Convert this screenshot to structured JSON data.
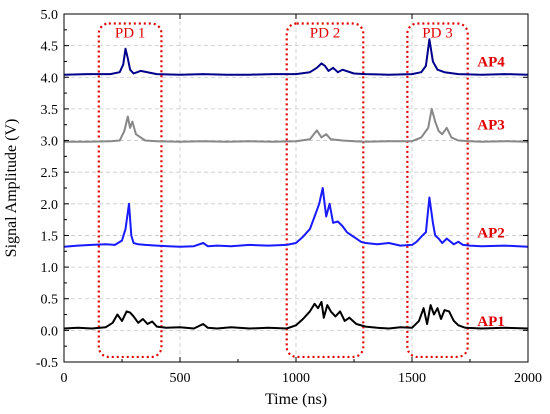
{
  "chart_data": {
    "type": "line",
    "xlabel": "Time (ns)",
    "ylabel": "Signal Amplitude (V)",
    "xlim": [
      0,
      2000
    ],
    "ylim": [
      -0.5,
      5.0
    ],
    "xticks": [
      "0",
      "500",
      "1000",
      "1500",
      "2000"
    ],
    "yticks": [
      "-0.5",
      "0.0",
      "0.5",
      "1.0",
      "1.5",
      "2.0",
      "2.5",
      "3.0",
      "3.5",
      "4.0",
      "4.5",
      "5.0"
    ],
    "grid": true,
    "regions": [
      {
        "label": "PD 1",
        "x0": 150,
        "x1": 420,
        "y0": -0.42,
        "y1": 4.85
      },
      {
        "label": "PD 2",
        "x0": 960,
        "x1": 1290,
        "y0": -0.42,
        "y1": 4.85
      },
      {
        "label": "PD 3",
        "x0": 1480,
        "x1": 1740,
        "y0": -0.42,
        "y1": 4.85
      }
    ],
    "colors": {
      "AP1": "#000000",
      "AP2": "#1a1aff",
      "AP3": "#888888",
      "AP4": "#00008b",
      "regions": "#e00000",
      "labels": "#e00000"
    },
    "series": [
      {
        "name": "AP1",
        "x": [
          0,
          60,
          120,
          180,
          210,
          230,
          250,
          270,
          285,
          300,
          320,
          340,
          360,
          380,
          400,
          440,
          500,
          560,
          600,
          620,
          660,
          720,
          800,
          880,
          960,
          1000,
          1030,
          1060,
          1080,
          1095,
          1110,
          1120,
          1135,
          1150,
          1170,
          1190,
          1210,
          1230,
          1260,
          1300,
          1350,
          1400,
          1450,
          1500,
          1530,
          1550,
          1565,
          1580,
          1595,
          1610,
          1625,
          1640,
          1660,
          1680,
          1700,
          1730,
          1800,
          1900,
          2000
        ],
        "y": [
          0.03,
          0.04,
          0.03,
          0.05,
          0.12,
          0.25,
          0.15,
          0.3,
          0.28,
          0.22,
          0.12,
          0.18,
          0.1,
          0.14,
          0.06,
          0.04,
          0.05,
          0.03,
          0.1,
          0.04,
          0.03,
          0.05,
          0.03,
          0.04,
          0.03,
          0.08,
          0.18,
          0.3,
          0.42,
          0.35,
          0.45,
          0.2,
          0.4,
          0.3,
          0.22,
          0.3,
          0.15,
          0.2,
          0.1,
          0.06,
          0.04,
          0.03,
          0.05,
          0.04,
          0.15,
          0.35,
          0.1,
          0.4,
          0.25,
          0.35,
          0.18,
          0.32,
          0.3,
          0.15,
          0.08,
          0.04,
          0.03,
          0.04,
          0.03
        ]
      },
      {
        "name": "AP2",
        "x": [
          0,
          60,
          120,
          180,
          220,
          250,
          265,
          280,
          290,
          300,
          320,
          350,
          400,
          450,
          500,
          560,
          600,
          620,
          660,
          720,
          800,
          880,
          960,
          1000,
          1030,
          1060,
          1080,
          1100,
          1115,
          1130,
          1145,
          1160,
          1180,
          1200,
          1220,
          1240,
          1260,
          1280,
          1300,
          1350,
          1400,
          1450,
          1500,
          1520,
          1545,
          1560,
          1575,
          1590,
          1600,
          1615,
          1630,
          1650,
          1680,
          1700,
          1720,
          1750,
          1800,
          1900,
          2000
        ],
        "y": [
          1.32,
          1.34,
          1.35,
          1.36,
          1.35,
          1.42,
          1.6,
          2.0,
          1.5,
          1.38,
          1.36,
          1.35,
          1.34,
          1.33,
          1.32,
          1.33,
          1.38,
          1.33,
          1.34,
          1.33,
          1.35,
          1.34,
          1.35,
          1.38,
          1.48,
          1.6,
          1.8,
          2.0,
          2.25,
          1.8,
          2.0,
          1.7,
          1.72,
          1.65,
          1.55,
          1.5,
          1.45,
          1.4,
          1.38,
          1.36,
          1.38,
          1.34,
          1.35,
          1.4,
          1.5,
          1.55,
          2.1,
          1.7,
          1.5,
          1.45,
          1.38,
          1.45,
          1.36,
          1.4,
          1.35,
          1.34,
          1.33,
          1.34,
          1.32
        ]
      },
      {
        "name": "AP3",
        "x": [
          0,
          100,
          200,
          240,
          260,
          275,
          285,
          295,
          310,
          330,
          350,
          400,
          500,
          600,
          700,
          800,
          900,
          1000,
          1060,
          1090,
          1110,
          1130,
          1150,
          1200,
          1250,
          1300,
          1400,
          1500,
          1540,
          1570,
          1585,
          1600,
          1615,
          1630,
          1650,
          1670,
          1700,
          1750,
          1800,
          1900,
          2000
        ],
        "y": [
          2.98,
          2.98,
          2.99,
          3.0,
          3.15,
          3.38,
          3.2,
          3.3,
          3.1,
          3.05,
          3.0,
          2.99,
          2.98,
          2.99,
          2.98,
          2.99,
          2.98,
          2.99,
          3.02,
          3.16,
          3.05,
          3.1,
          3.02,
          3.0,
          2.99,
          2.98,
          2.99,
          2.99,
          3.05,
          3.2,
          3.5,
          3.3,
          3.15,
          3.1,
          3.2,
          3.05,
          3.0,
          2.99,
          2.98,
          2.99,
          2.98
        ]
      },
      {
        "name": "AP4",
        "x": [
          0,
          100,
          200,
          240,
          255,
          265,
          275,
          285,
          300,
          330,
          400,
          500,
          600,
          700,
          800,
          900,
          1000,
          1060,
          1090,
          1110,
          1125,
          1140,
          1160,
          1180,
          1200,
          1250,
          1300,
          1400,
          1500,
          1540,
          1560,
          1575,
          1590,
          1610,
          1640,
          1700,
          1800,
          1900,
          2000
        ],
        "y": [
          4.04,
          4.05,
          4.05,
          4.08,
          4.2,
          4.45,
          4.3,
          4.12,
          4.06,
          4.1,
          4.05,
          4.04,
          4.05,
          4.04,
          4.04,
          4.05,
          4.05,
          4.08,
          4.15,
          4.22,
          4.18,
          4.1,
          4.15,
          4.08,
          4.12,
          4.06,
          4.05,
          4.04,
          4.05,
          4.08,
          4.18,
          4.6,
          4.25,
          4.12,
          4.08,
          4.05,
          4.04,
          4.05,
          4.04
        ]
      }
    ],
    "series_labels": [
      {
        "text": "AP1",
        "at": [
          1900,
          0.15
        ]
      },
      {
        "text": "AP2",
        "at": [
          1900,
          1.55
        ]
      },
      {
        "text": "AP3",
        "at": [
          1900,
          3.25
        ]
      },
      {
        "text": "AP4",
        "at": [
          1900,
          4.25
        ]
      }
    ]
  }
}
